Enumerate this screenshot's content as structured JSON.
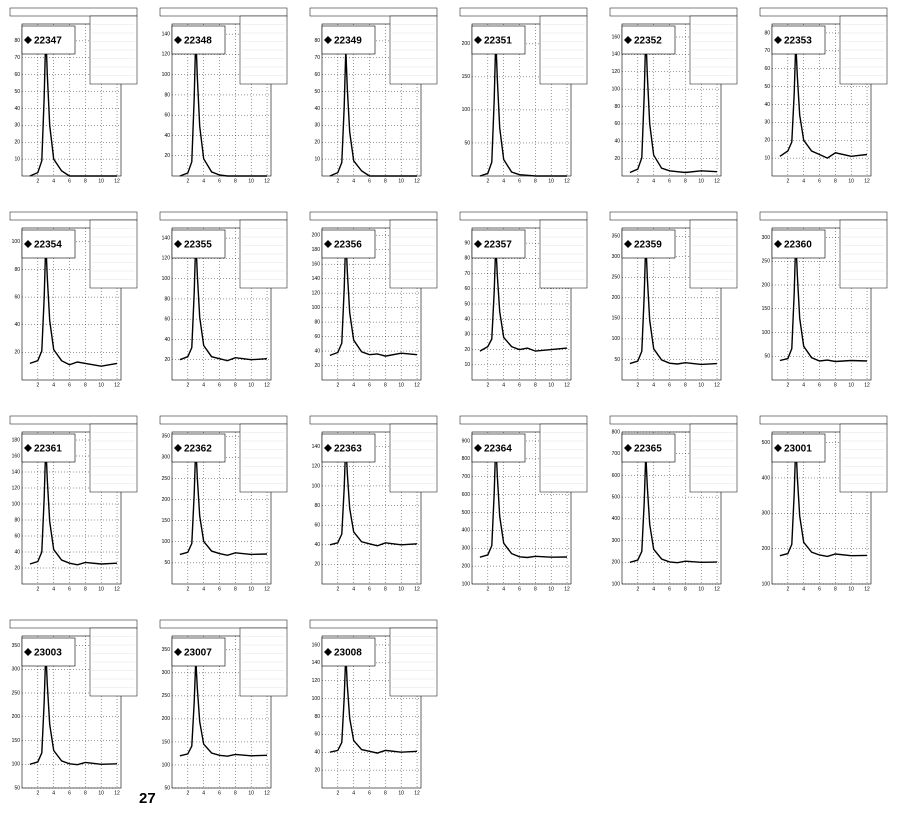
{
  "footer_text": "27",
  "chart_data": [
    {
      "type": "line",
      "title": "22347",
      "color": "#000000",
      "x": [
        1,
        2,
        2.5,
        2.8,
        3,
        3.2,
        3.5,
        4,
        5,
        6,
        7,
        8,
        10,
        12
      ],
      "values": [
        0,
        2,
        9,
        47,
        85,
        60,
        30,
        10,
        3,
        0,
        0,
        0,
        0,
        0
      ],
      "xlim": [
        0,
        12.5
      ],
      "xticks": [
        2,
        4,
        6,
        8,
        10,
        12
      ],
      "ylim": [
        0,
        90
      ],
      "yticks": [
        10,
        20,
        30,
        40,
        50,
        60,
        70,
        80
      ],
      "grid": true
    },
    {
      "type": "line",
      "title": "22348",
      "color": "#000000",
      "x": [
        1,
        2,
        2.5,
        2.8,
        3,
        3.2,
        3.5,
        4,
        5,
        6,
        7,
        8,
        10,
        12
      ],
      "values": [
        0,
        3,
        14,
        77,
        140,
        98,
        49,
        17,
        4,
        1,
        0,
        0,
        0,
        0
      ],
      "xlim": [
        0,
        12.5
      ],
      "xticks": [
        2,
        4,
        6,
        8,
        10,
        12
      ],
      "ylim": [
        0,
        150
      ],
      "yticks": [
        20,
        40,
        60,
        80,
        100,
        120,
        140
      ],
      "grid": true
    },
    {
      "type": "line",
      "title": "22349",
      "color": "#000000",
      "x": [
        1,
        2,
        2.5,
        2.8,
        3,
        3.2,
        3.5,
        4,
        5,
        6,
        7,
        8,
        10,
        12
      ],
      "values": [
        0,
        2,
        8,
        41,
        75,
        52,
        26,
        9,
        3,
        0,
        0,
        0,
        0,
        0
      ],
      "xlim": [
        0,
        12.5
      ],
      "xticks": [
        2,
        4,
        6,
        8,
        10,
        12
      ],
      "ylim": [
        0,
        90
      ],
      "yticks": [
        10,
        20,
        30,
        40,
        50,
        60,
        70,
        80
      ],
      "grid": true
    },
    {
      "type": "line",
      "title": "22351",
      "color": "#000000",
      "x": [
        1,
        2,
        2.5,
        2.8,
        3,
        3.2,
        3.5,
        4,
        5,
        6,
        7,
        8,
        10,
        12
      ],
      "values": [
        0,
        4,
        21,
        115,
        210,
        147,
        73,
        25,
        6,
        2,
        1,
        0,
        0,
        0
      ],
      "xlim": [
        0,
        12.5
      ],
      "xticks": [
        2,
        4,
        6,
        8,
        10,
        12
      ],
      "ylim": [
        0,
        230
      ],
      "yticks": [
        50,
        100,
        150,
        200
      ],
      "grid": true
    },
    {
      "type": "line",
      "title": "22352",
      "color": "#000000",
      "x": [
        1,
        2,
        2.5,
        2.8,
        3,
        3.2,
        3.5,
        4,
        5,
        6,
        7,
        8,
        10,
        12
      ],
      "values": [
        4,
        8,
        21,
        93,
        165,
        117,
        60,
        24,
        9,
        6,
        5,
        4,
        6,
        5
      ],
      "xlim": [
        0,
        12.5
      ],
      "xticks": [
        2,
        4,
        6,
        8,
        10,
        12
      ],
      "ylim": [
        0,
        175
      ],
      "yticks": [
        20,
        40,
        60,
        80,
        100,
        120,
        140,
        160
      ],
      "grid": true
    },
    {
      "type": "line",
      "title": "22353",
      "color": "#000000",
      "x": [
        1,
        2,
        2.5,
        2.8,
        3,
        3.2,
        3.5,
        4,
        5,
        6,
        7,
        8,
        10,
        12
      ],
      "values": [
        11,
        14,
        19,
        46,
        75,
        56,
        34,
        20,
        14,
        12,
        10,
        13,
        11,
        12
      ],
      "xlim": [
        0,
        12.5
      ],
      "xticks": [
        2,
        4,
        6,
        8,
        10,
        12
      ],
      "ylim": [
        0,
        85
      ],
      "yticks": [
        10,
        20,
        30,
        40,
        50,
        60,
        70,
        80
      ],
      "grid": true
    },
    {
      "type": "line",
      "title": "22354",
      "color": "#000000",
      "x": [
        1,
        2,
        2.5,
        2.8,
        3,
        3.2,
        3.5,
        4,
        5,
        6,
        7,
        8,
        10,
        12
      ],
      "values": [
        12,
        14,
        21,
        60,
        100,
        74,
        43,
        22,
        14,
        11,
        13,
        12,
        10,
        12
      ],
      "xlim": [
        0,
        12.5
      ],
      "xticks": [
        2,
        4,
        6,
        8,
        10,
        12
      ],
      "ylim": [
        0,
        110
      ],
      "yticks": [
        20,
        40,
        60,
        80,
        100
      ],
      "grid": true
    },
    {
      "type": "line",
      "title": "22355",
      "color": "#000000",
      "x": [
        1,
        2,
        2.5,
        2.8,
        3,
        3.2,
        3.5,
        4,
        5,
        6,
        7,
        8,
        10,
        12
      ],
      "values": [
        20,
        23,
        32,
        86,
        140,
        104,
        62,
        34,
        23,
        21,
        19,
        22,
        20,
        21
      ],
      "xlim": [
        0,
        12.5
      ],
      "xticks": [
        2,
        4,
        6,
        8,
        10,
        12
      ],
      "ylim": [
        0,
        150
      ],
      "yticks": [
        20,
        40,
        60,
        80,
        100,
        120,
        140
      ],
      "grid": true
    },
    {
      "type": "line",
      "title": "22356",
      "color": "#000000",
      "x": [
        1,
        2,
        2.5,
        2.8,
        3,
        3.2,
        3.5,
        4,
        5,
        6,
        7,
        8,
        10,
        12
      ],
      "values": [
        34,
        38,
        51,
        126,
        200,
        150,
        93,
        55,
        39,
        35,
        36,
        33,
        37,
        35
      ],
      "xlim": [
        0,
        12.5
      ],
      "xticks": [
        2,
        4,
        6,
        8,
        10,
        12
      ],
      "ylim": [
        0,
        210
      ],
      "yticks": [
        20,
        40,
        60,
        80,
        100,
        120,
        140,
        160,
        180,
        200
      ],
      "grid": true
    },
    {
      "type": "line",
      "title": "22357",
      "color": "#000000",
      "x": [
        1,
        2,
        2.5,
        2.8,
        3,
        3.2,
        3.5,
        4,
        5,
        6,
        7,
        8,
        10,
        12
      ],
      "values": [
        19,
        22,
        27,
        58,
        90,
        69,
        45,
        28,
        22,
        20,
        21,
        19,
        20,
        21
      ],
      "xlim": [
        0,
        12.5
      ],
      "xticks": [
        2,
        4,
        6,
        8,
        10,
        12
      ],
      "ylim": [
        0,
        100
      ],
      "yticks": [
        10,
        20,
        30,
        40,
        50,
        60,
        70,
        80,
        90
      ],
      "grid": true
    },
    {
      "type": "line",
      "title": "22359",
      "color": "#000000",
      "x": [
        1,
        2,
        2.5,
        2.8,
        3,
        3.2,
        3.5,
        4,
        5,
        6,
        7,
        8,
        10,
        12
      ],
      "values": [
        40,
        46,
        70,
        205,
        340,
        250,
        145,
        76,
        49,
        41,
        39,
        42,
        38,
        40
      ],
      "xlim": [
        0,
        12.5
      ],
      "xticks": [
        2,
        4,
        6,
        8,
        10,
        12
      ],
      "ylim": [
        0,
        370
      ],
      "yticks": [
        50,
        100,
        150,
        200,
        250,
        300,
        350
      ],
      "grid": true
    },
    {
      "type": "line",
      "title": "22360",
      "color": "#000000",
      "x": [
        1,
        2,
        2.5,
        2.8,
        3,
        3.2,
        3.5,
        4,
        5,
        6,
        7,
        8,
        10,
        12
      ],
      "values": [
        41,
        45,
        66,
        183,
        300,
        222,
        130,
        71,
        47,
        40,
        42,
        39,
        41,
        40
      ],
      "xlim": [
        0,
        12.5
      ],
      "xticks": [
        2,
        4,
        6,
        8,
        10,
        12
      ],
      "ylim": [
        0,
        320
      ],
      "yticks": [
        50,
        100,
        150,
        200,
        250,
        300
      ],
      "grid": true
    },
    {
      "type": "line",
      "title": "22361",
      "color": "#000000",
      "x": [
        1,
        2,
        2.5,
        2.8,
        3,
        3.2,
        3.5,
        4,
        5,
        6,
        7,
        8,
        10,
        12
      ],
      "values": [
        25,
        28,
        40,
        108,
        175,
        130,
        78,
        43,
        30,
        26,
        24,
        27,
        25,
        26
      ],
      "xlim": [
        0,
        12.5
      ],
      "xticks": [
        2,
        4,
        6,
        8,
        10,
        12
      ],
      "ylim": [
        0,
        190
      ],
      "yticks": [
        20,
        40,
        60,
        80,
        100,
        120,
        140,
        160,
        180
      ],
      "grid": true
    },
    {
      "type": "line",
      "title": "22362",
      "color": "#000000",
      "x": [
        1,
        2,
        2.5,
        2.8,
        3,
        3.2,
        3.5,
        4,
        5,
        6,
        7,
        8,
        10,
        12
      ],
      "values": [
        70,
        75,
        96,
        213,
        330,
        252,
        161,
        101,
        78,
        72,
        68,
        74,
        70,
        71
      ],
      "xlim": [
        0,
        12.5
      ],
      "xticks": [
        2,
        4,
        6,
        8,
        10,
        12
      ],
      "ylim": [
        0,
        360
      ],
      "yticks": [
        50,
        100,
        150,
        200,
        250,
        300,
        350
      ],
      "grid": true
    },
    {
      "type": "line",
      "title": "22363",
      "color": "#000000",
      "x": [
        1,
        2,
        2.5,
        2.8,
        3,
        3.2,
        3.5,
        4,
        5,
        6,
        7,
        8,
        10,
        12
      ],
      "values": [
        40,
        42,
        51,
        98,
        145,
        113,
        77,
        53,
        43,
        41,
        39,
        42,
        40,
        41
      ],
      "xlim": [
        0,
        12.5
      ],
      "xticks": [
        2,
        4,
        6,
        8,
        10,
        12
      ],
      "ylim": [
        0,
        155
      ],
      "yticks": [
        20,
        40,
        60,
        80,
        100,
        120,
        140
      ],
      "grid": true
    },
    {
      "type": "line",
      "title": "22364",
      "color": "#000000",
      "x": [
        1,
        2,
        2.5,
        2.8,
        3,
        3.2,
        3.5,
        4,
        5,
        6,
        7,
        8,
        10,
        12
      ],
      "values": [
        250,
        263,
        315,
        608,
        900,
        705,
        478,
        328,
        270,
        252,
        248,
        255,
        250,
        251
      ],
      "xlim": [
        0,
        12.5
      ],
      "xticks": [
        2,
        4,
        6,
        8,
        10,
        12
      ],
      "ylim": [
        100,
        950
      ],
      "yticks": [
        100,
        200,
        300,
        400,
        500,
        600,
        700,
        800,
        900
      ],
      "grid": true
    },
    {
      "type": "line",
      "title": "22365",
      "color": "#000000",
      "x": [
        1,
        2,
        2.5,
        2.8,
        3,
        3.2,
        3.5,
        4,
        5,
        6,
        7,
        8,
        10,
        12
      ],
      "values": [
        200,
        210,
        250,
        475,
        700,
        550,
        375,
        260,
        215,
        202,
        198,
        205,
        200,
        201
      ],
      "xlim": [
        0,
        12.5
      ],
      "xticks": [
        2,
        4,
        6,
        8,
        10,
        12
      ],
      "ylim": [
        100,
        800
      ],
      "yticks": [
        100,
        200,
        300,
        400,
        500,
        600,
        700,
        800
      ],
      "grid": true
    },
    {
      "type": "line",
      "title": "23001",
      "color": "#000000",
      "x": [
        1,
        2,
        2.5,
        2.8,
        3,
        3.2,
        3.5,
        4,
        5,
        6,
        7,
        8,
        10,
        12
      ],
      "values": [
        180,
        186,
        212,
        356,
        500,
        404,
        292,
        218,
        190,
        182,
        178,
        185,
        180,
        181
      ],
      "xlim": [
        0,
        12.5
      ],
      "xticks": [
        2,
        4,
        6,
        8,
        10,
        12
      ],
      "ylim": [
        100,
        530
      ],
      "yticks": [
        100,
        200,
        300,
        400,
        500
      ],
      "grid": true
    },
    {
      "type": "line",
      "title": "23003",
      "color": "#000000",
      "x": [
        1,
        2,
        2.5,
        2.8,
        3,
        3.2,
        3.5,
        4,
        5,
        6,
        7,
        8,
        10,
        12
      ],
      "values": [
        100,
        105,
        124,
        232,
        340,
        268,
        184,
        129,
        107,
        101,
        99,
        104,
        100,
        101
      ],
      "xlim": [
        0,
        12.5
      ],
      "xticks": [
        2,
        4,
        6,
        8,
        10,
        12
      ],
      "ylim": [
        50,
        370
      ],
      "yticks": [
        50,
        100,
        150,
        200,
        250,
        300,
        350
      ],
      "grid": true
    },
    {
      "type": "line",
      "title": "23007",
      "color": "#000000",
      "x": [
        1,
        2,
        2.5,
        2.8,
        3,
        3.2,
        3.5,
        4,
        5,
        6,
        7,
        8,
        10,
        12
      ],
      "values": [
        120,
        124,
        141,
        236,
        330,
        267,
        194,
        145,
        126,
        121,
        119,
        123,
        120,
        121
      ],
      "xlim": [
        0,
        12.5
      ],
      "xticks": [
        2,
        4,
        6,
        8,
        10,
        12
      ],
      "ylim": [
        50,
        380
      ],
      "yticks": [
        50,
        100,
        150,
        200,
        250,
        300,
        350
      ],
      "grid": true
    },
    {
      "type": "line",
      "title": "23008",
      "color": "#000000",
      "x": [
        1,
        2,
        2.5,
        2.8,
        3,
        3.2,
        3.5,
        4,
        5,
        6,
        7,
        8,
        10,
        12
      ],
      "values": [
        40,
        42,
        51,
        101,
        150,
        115,
        78,
        53,
        43,
        41,
        39,
        42,
        40,
        41
      ],
      "xlim": [
        0,
        12.5
      ],
      "xticks": [
        2,
        4,
        6,
        8,
        10,
        12
      ],
      "ylim": [
        0,
        170
      ],
      "yticks": [
        20,
        40,
        60,
        80,
        100,
        120,
        140,
        160
      ],
      "grid": true
    }
  ]
}
